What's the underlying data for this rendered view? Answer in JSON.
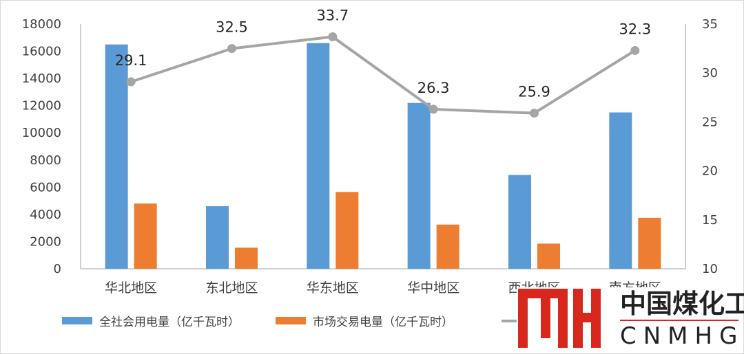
{
  "chart_data": {
    "type": "bar",
    "categories": [
      "华北地区",
      "东北地区",
      "华东地区",
      "华中地区",
      "西北地区",
      "南方地区"
    ],
    "series": [
      {
        "name": "全社会用电量（亿千瓦时）",
        "type": "bar",
        "axis": "left",
        "color": "#5B9BD5",
        "values": [
          16500,
          4600,
          16600,
          12200,
          6900,
          11500
        ]
      },
      {
        "name": "市场交易电量（亿千瓦时）",
        "type": "bar",
        "axis": "left",
        "color": "#ED7D31",
        "values": [
          4800,
          1550,
          5650,
          3250,
          1850,
          3750
        ]
      },
      {
        "name": "",
        "type": "line",
        "axis": "right",
        "color": "#A5A5A5",
        "values": [
          29.1,
          32.5,
          33.7,
          26.3,
          25.9,
          32.3
        ],
        "labels": [
          "29.1",
          "32.5",
          "33.7",
          "26.3",
          "25.9",
          "32.3"
        ]
      }
    ],
    "y_left": {
      "min": 0,
      "max": 18000,
      "ticks": [
        "0",
        "2000",
        "4000",
        "6000",
        "8000",
        "10000",
        "12000",
        "14000",
        "16000",
        "18000"
      ]
    },
    "y_right": {
      "min": 10,
      "max": 35,
      "ticks": [
        "10",
        "15",
        "20",
        "25",
        "30",
        "35"
      ]
    },
    "grid": false,
    "legend_position": "bottom"
  },
  "watermark": {
    "logo_letters": "MH",
    "name_cn": "中国煤化工",
    "name_en": "CNMHG",
    "color": "#D8281E"
  }
}
